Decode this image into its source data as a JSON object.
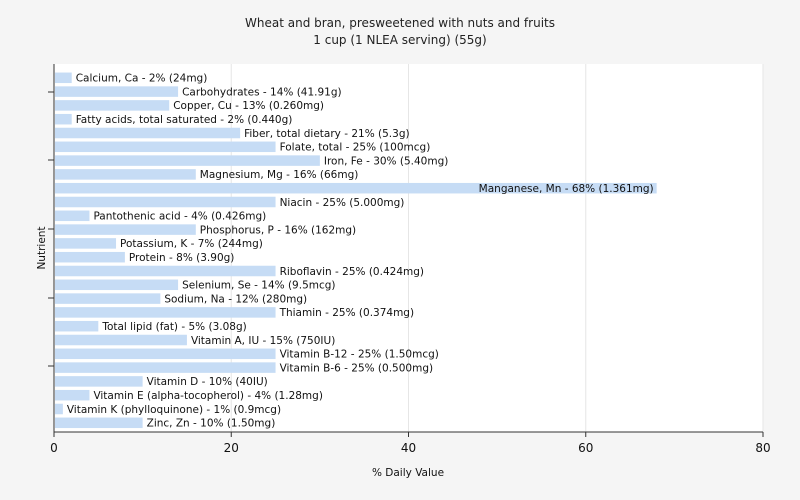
{
  "chart_data": {
    "type": "bar",
    "orientation": "horizontal",
    "title": "Wheat and bran, presweetened with nuts and fruits",
    "subtitle": "1 cup (1 NLEA serving) (55g)",
    "xlabel": "% Daily Value",
    "ylabel": "Nutrient",
    "xlim": [
      0,
      80
    ],
    "xticks": [
      0,
      20,
      40,
      60,
      80
    ],
    "grid": true,
    "bar_color": "#c6dcf5",
    "categories": [
      "Calcium, Ca - 2% (24mg)",
      "Carbohydrates - 14% (41.91g)",
      "Copper, Cu - 13% (0.260mg)",
      "Fatty acids, total saturated - 2% (0.440g)",
      "Fiber, total dietary - 21% (5.3g)",
      "Folate, total - 25% (100mcg)",
      "Iron, Fe - 30% (5.40mg)",
      "Magnesium, Mg - 16% (66mg)",
      "Manganese, Mn - 68% (1.361mg)",
      "Niacin - 25% (5.000mg)",
      "Pantothenic acid - 4% (0.426mg)",
      "Phosphorus, P - 16% (162mg)",
      "Potassium, K - 7% (244mg)",
      "Protein - 8% (3.90g)",
      "Riboflavin - 25% (0.424mg)",
      "Selenium, Se - 14% (9.5mcg)",
      "Sodium, Na - 12% (280mg)",
      "Thiamin - 25% (0.374mg)",
      "Total lipid (fat) - 5% (3.08g)",
      "Vitamin A, IU - 15% (750IU)",
      "Vitamin B-12 - 25% (1.50mcg)",
      "Vitamin B-6 - 25% (0.500mg)",
      "Vitamin D - 10% (40IU)",
      "Vitamin E (alpha-tocopherol) - 4% (1.28mg)",
      "Vitamin K (phylloquinone) - 1% (0.9mcg)",
      "Zinc, Zn - 10% (1.50mg)"
    ],
    "values": [
      2,
      14,
      13,
      2,
      21,
      25,
      30,
      16,
      68,
      25,
      4,
      16,
      7,
      8,
      25,
      14,
      12,
      25,
      5,
      15,
      25,
      25,
      10,
      4,
      1,
      10
    ]
  }
}
